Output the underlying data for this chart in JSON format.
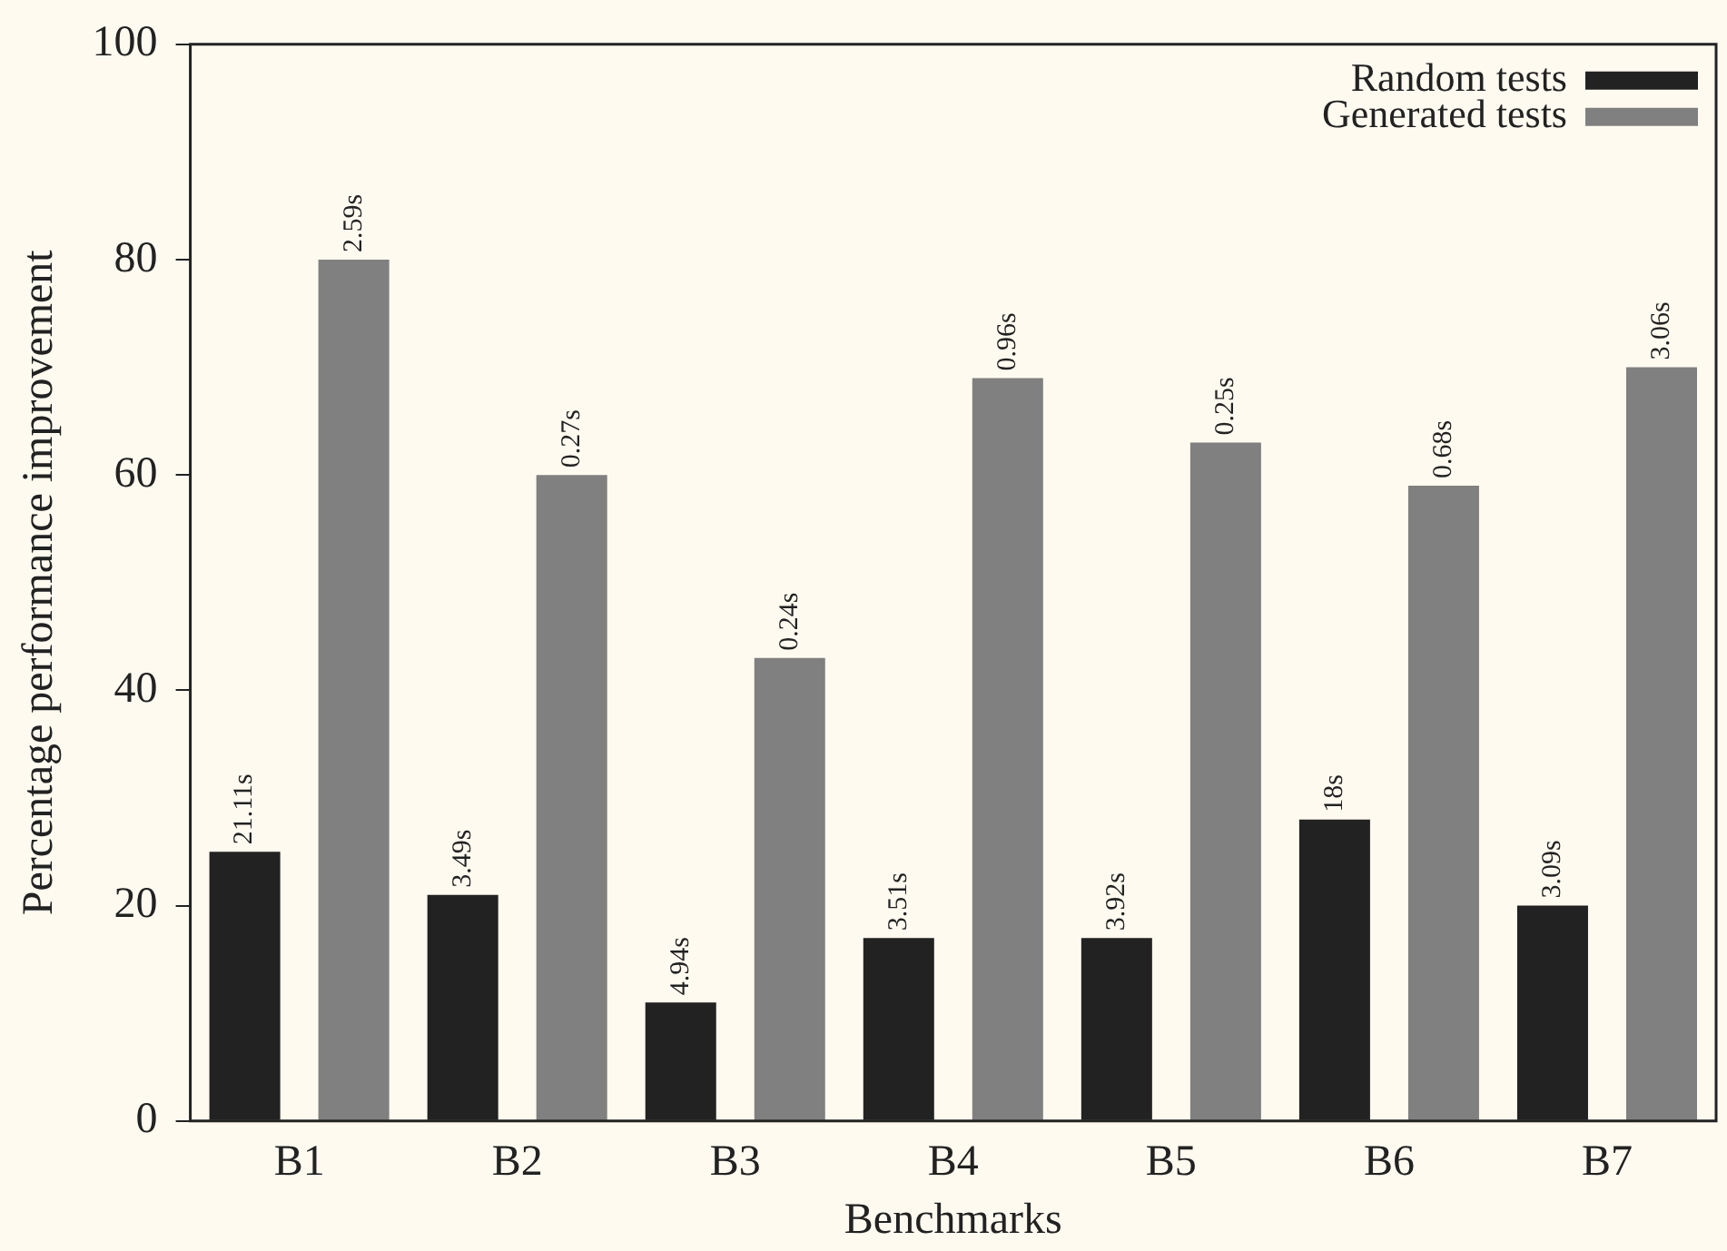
{
  "chart_data": {
    "type": "bar",
    "xlabel": "Benchmarks",
    "ylabel": "Percentage performance improvement",
    "categories": [
      "B1",
      "B2",
      "B3",
      "B4",
      "B5",
      "B6",
      "B7"
    ],
    "series": [
      {
        "name": "Random tests",
        "color": "#222222",
        "values": [
          25,
          21,
          11,
          17,
          17,
          28,
          20
        ]
      },
      {
        "name": "Generated tests",
        "color": "#808080",
        "values": [
          80,
          60,
          43,
          69,
          63,
          59,
          70
        ]
      }
    ],
    "annotations": [
      "21.11s",
      "3.49s",
      "4.94s",
      "3.51s",
      "3.92s",
      "18s",
      "3.09s",
      "2.59s",
      "0.27s",
      "0.24s",
      "0.96s",
      "0.25s",
      "0.68s",
      "3.06s"
    ],
    "ylim": [
      0,
      100
    ],
    "yticks": [
      0,
      20,
      40,
      60,
      80,
      100
    ],
    "grid": false,
    "legend": "top right"
  }
}
